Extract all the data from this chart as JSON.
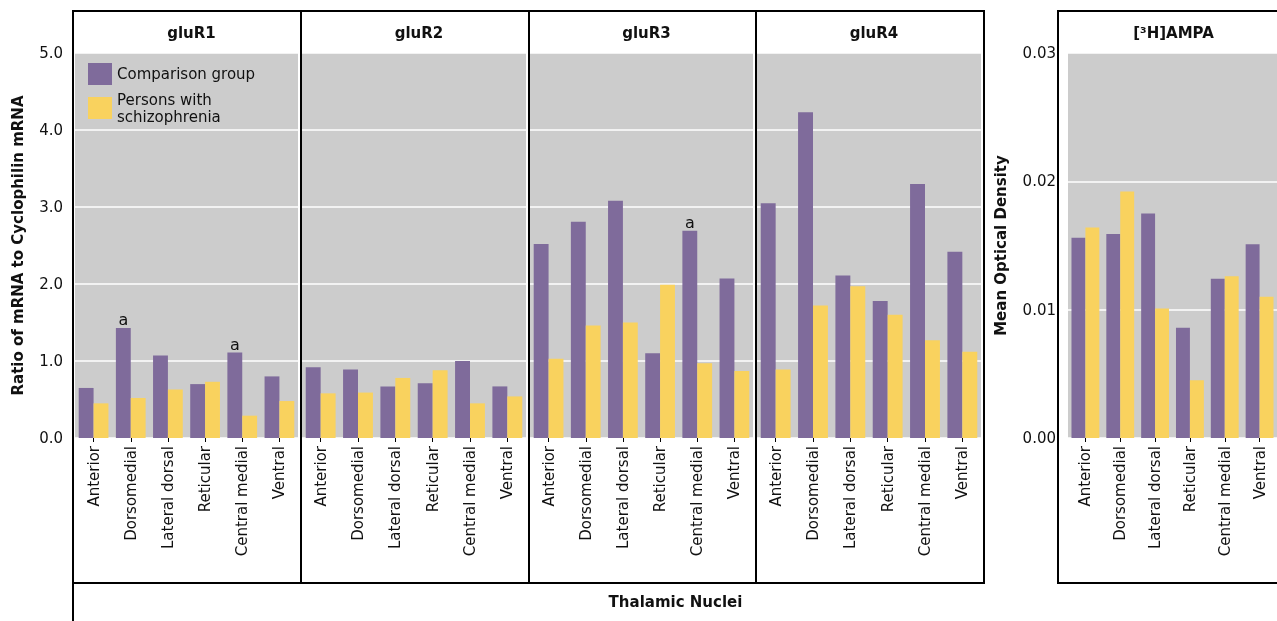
{
  "chart_data": [
    {
      "type": "bar",
      "title": "gluR1",
      "ylabel": "Ratio of mRNA to Cyclophilin mRNA",
      "categories": [
        "Anterior",
        "Dorsomedial",
        "Lateral dorsal",
        "Reticular",
        "Central medial",
        "Ventral"
      ],
      "series": [
        {
          "name": "Comparison group",
          "color": "#7f6b9b",
          "values": [
            0.65,
            1.43,
            1.07,
            0.7,
            1.11,
            0.8
          ]
        },
        {
          "name": "Persons with schizophrenia",
          "color": "#f9d25e",
          "values": [
            0.45,
            0.52,
            0.63,
            0.73,
            0.29,
            0.48
          ]
        }
      ],
      "annotations": [
        {
          "text": "a",
          "x": "Dorsomedial",
          "y": 1.43
        },
        {
          "text": "a",
          "x": "Central medial",
          "y": 1.11
        }
      ],
      "ylim": [
        0,
        5
      ],
      "yticks": [
        {
          "value": 0,
          "label": "0.0"
        },
        {
          "value": 1,
          "label": "1.0"
        },
        {
          "value": 2,
          "label": "2.0"
        },
        {
          "value": 3,
          "label": "3.0"
        },
        {
          "value": 4,
          "label": "4.0"
        },
        {
          "value": 5,
          "label": "5.0"
        }
      ],
      "grid": "y",
      "legend": "top left"
    },
    {
      "type": "bar",
      "title": "gluR2",
      "categories": [
        "Anterior",
        "Dorsomedial",
        "Lateral dorsal",
        "Reticular",
        "Central medial",
        "Ventral"
      ],
      "series": [
        {
          "color": "#7f6b9b",
          "values": [
            0.92,
            0.89,
            0.67,
            0.71,
            1.0,
            0.67
          ]
        },
        {
          "color": "#f9d25e",
          "values": [
            0.58,
            0.59,
            0.78,
            0.88,
            0.45,
            0.54
          ]
        }
      ],
      "ylim": [
        0,
        5
      ],
      "grid": "y",
      "tick_labels": "x"
    },
    {
      "type": "bar",
      "title": "gluR3",
      "xlabel": "Thalamic Nuclei",
      "categories": [
        "Anterior",
        "Dorsomedial",
        "Lateral dorsal",
        "Reticular",
        "Central medial",
        "Ventral"
      ],
      "series": [
        {
          "color": "#7f6b9b",
          "values": [
            2.52,
            2.81,
            3.08,
            1.1,
            2.69,
            2.07
          ]
        },
        {
          "color": "#f9d25e",
          "values": [
            1.03,
            1.46,
            1.5,
            1.99,
            0.97,
            0.87
          ]
        }
      ],
      "annotations": [
        {
          "text": "a",
          "x": "Central medial",
          "y": 2.69
        }
      ],
      "ylim": [
        0,
        5
      ],
      "grid": "y",
      "tick_labels": "x"
    },
    {
      "type": "bar",
      "title": "gluR4",
      "categories": [
        "Anterior",
        "Dorsomedial",
        "Lateral dorsal",
        "Reticular",
        "Central medial",
        "Ventral"
      ],
      "series": [
        {
          "color": "#7f6b9b",
          "values": [
            3.05,
            4.23,
            2.11,
            1.78,
            3.3,
            2.42
          ]
        },
        {
          "color": "#f9d25e",
          "values": [
            0.89,
            1.72,
            1.97,
            1.6,
            1.27,
            1.12
          ]
        }
      ],
      "ylim": [
        0,
        5
      ],
      "grid": "y",
      "tick_labels": "x"
    },
    {
      "type": "bar",
      "title": "[³H]AMPA",
      "ylabel": "Mean Optical Density",
      "categories": [
        "Anterior",
        "Dorsomedial",
        "Lateral dorsal",
        "Reticular",
        "Central medial",
        "Ventral"
      ],
      "series": [
        {
          "color": "#7f6b9b",
          "values": [
            0.0156,
            0.0159,
            0.0175,
            0.0086,
            0.0124,
            0.0151
          ]
        },
        {
          "color": "#f9d25e",
          "values": [
            0.0164,
            0.0192,
            0.0101,
            0.0045,
            0.0126,
            0.011
          ]
        }
      ],
      "ylim": [
        0,
        0.03
      ],
      "yticks": [
        {
          "value": 0,
          "label": "0.00"
        },
        0.01,
        0.02,
        0.03
      ],
      "grid": "y"
    }
  ]
}
